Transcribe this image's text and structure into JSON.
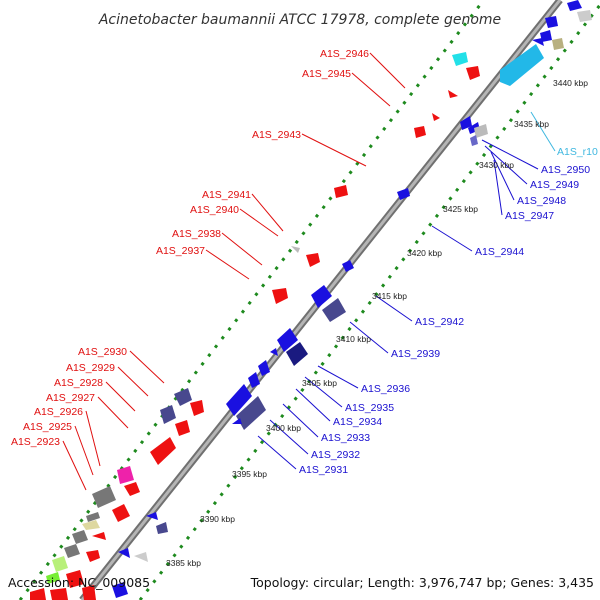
{
  "title": "Acinetobacter baumannii ATCC 17978, complete genome",
  "footer": {
    "accession": "Accession: NC_009085",
    "topology": "Topology: circular; Length: 3,976,747 bp; Genes: 3,435"
  },
  "colors": {
    "backbone": "#8a8a8a",
    "ticks": "#1e8a1e",
    "forward_label": "#e01010",
    "reverse_label": "#1a10d0",
    "rna_label": "#40b8e0"
  },
  "kbp_ticks": [
    "3385 kbp",
    "3390 kbp",
    "3395 kbp",
    "3400 kbp",
    "3405 kbp",
    "3410 kbp",
    "3415 kbp",
    "3420 kbp",
    "3425 kbp",
    "3430 kbp",
    "3435 kbp",
    "3440 kbp"
  ],
  "forward_genes": [
    "A1S_2946",
    "A1S_2945",
    "A1S_2943",
    "A1S_2941",
    "A1S_2940",
    "A1S_2938",
    "A1S_2937",
    "A1S_2930",
    "A1S_2929",
    "A1S_2928",
    "A1S_2927",
    "A1S_2926",
    "A1S_2925",
    "A1S_2923"
  ],
  "reverse_genes": [
    "A1S_2950",
    "A1S_2949",
    "A1S_2948",
    "A1S_2947",
    "A1S_2944",
    "A1S_2942",
    "A1S_2939",
    "A1S_2936",
    "A1S_2935",
    "A1S_2934",
    "A1S_2933",
    "A1S_2932",
    "A1S_2931"
  ],
  "rna_genes": [
    "A1S_r10"
  ]
}
